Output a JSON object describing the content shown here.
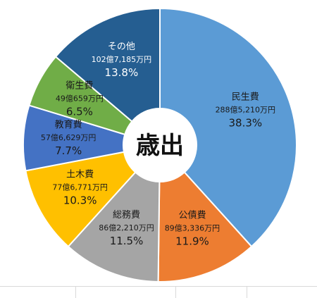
{
  "chart_data": {
    "type": "pie",
    "center_label": "歳出",
    "slices": [
      {
        "name": "民生費",
        "amount": "288億5,210万円",
        "percent": "38.3%",
        "value": 38.3,
        "color": "#5b9bd5"
      },
      {
        "name": "公債費",
        "amount": "89億3,336万円",
        "percent": "11.9%",
        "value": 11.9,
        "color": "#ed7d31"
      },
      {
        "name": "総務費",
        "amount": "86億2,210万円",
        "percent": "11.5%",
        "value": 11.5,
        "color": "#a5a5a5"
      },
      {
        "name": "土木費",
        "amount": "77億6,771万円",
        "percent": "10.3%",
        "value": 10.3,
        "color": "#ffc000"
      },
      {
        "name": "教育費",
        "amount": "57億6,629万円",
        "percent": "7.7%",
        "value": 7.7,
        "color": "#4472c4"
      },
      {
        "name": "衛生費",
        "amount": "49億659万円",
        "percent": "6.5%",
        "value": 6.5,
        "color": "#70ad47"
      },
      {
        "name": "その他",
        "amount": "102億7,185万円",
        "percent": "13.8%",
        "value": 13.8,
        "color": "#255e91"
      }
    ]
  }
}
